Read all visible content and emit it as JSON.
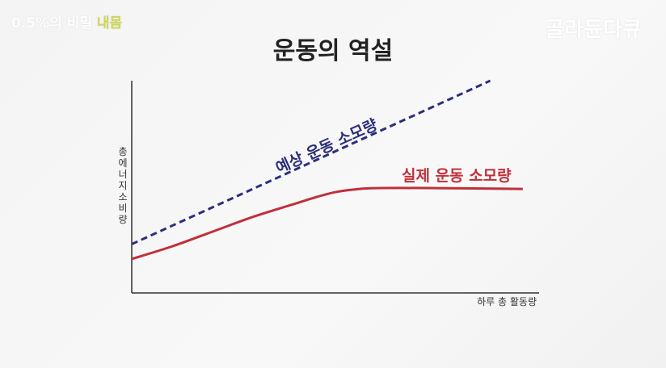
{
  "watermark_left": {
    "main": "0.5%의 비밀",
    "accent": "내몸"
  },
  "watermark_right": "골라듄다큐",
  "chart_data": {
    "type": "line",
    "title": "운동의 역설",
    "xlabel": "하루 총 활동량",
    "ylabel": "총 에너지 소비량",
    "xlim": [
      0,
      100
    ],
    "ylim": [
      0,
      100
    ],
    "grid": false,
    "series": [
      {
        "name": "예상 운동 소모량",
        "color": "#2b2f7a",
        "style": "dashed",
        "x": [
          0,
          88
        ],
        "y": [
          23,
          100
        ]
      },
      {
        "name": "실제 운동 소모량",
        "color": "#c0303a",
        "style": "solid",
        "x": [
          0,
          10,
          20,
          30,
          40,
          45,
          50,
          55,
          60,
          75,
          96
        ],
        "y": [
          16,
          22,
          29,
          36,
          42,
          45,
          47.5,
          48.8,
          49.4,
          49.4,
          49
        ]
      }
    ]
  }
}
